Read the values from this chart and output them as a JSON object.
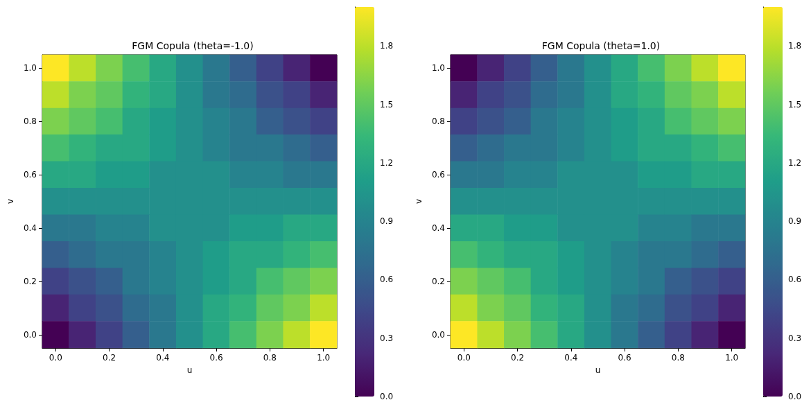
{
  "chart_data": [
    {
      "type": "heatmap",
      "title": "FGM Copula (theta=-1.0)",
      "xlabel": "u",
      "ylabel": "v",
      "categories": [
        "0.0",
        null,
        "0.2",
        null,
        "0.4",
        null,
        "0.6",
        null,
        "0.8",
        null,
        "1.0"
      ],
      "y_categories": [
        "1.0",
        null,
        "0.8",
        null,
        "0.6",
        null,
        "0.4",
        null,
        "0.2",
        null,
        "0.0"
      ],
      "cells": [
        [
          2.0,
          1.8,
          1.6,
          1.4,
          1.2,
          1.0,
          0.8,
          0.6,
          0.4,
          0.2,
          0.0
        ],
        [
          1.8,
          1.6,
          1.5,
          1.3,
          1.2,
          1.0,
          0.8,
          0.7,
          0.5,
          0.4,
          0.2
        ],
        [
          1.6,
          1.5,
          1.4,
          1.2,
          1.1,
          1.0,
          0.9,
          0.8,
          0.6,
          0.5,
          0.4
        ],
        [
          1.4,
          1.3,
          1.2,
          1.2,
          1.1,
          1.0,
          0.9,
          0.8,
          0.8,
          0.7,
          0.6
        ],
        [
          1.2,
          1.2,
          1.1,
          1.1,
          1.0,
          1.0,
          1.0,
          0.9,
          0.9,
          0.8,
          0.8
        ],
        [
          1.0,
          1.0,
          1.0,
          1.0,
          1.0,
          1.0,
          1.0,
          1.0,
          1.0,
          1.0,
          1.0
        ],
        [
          0.8,
          0.8,
          0.9,
          0.9,
          1.0,
          1.0,
          1.0,
          1.1,
          1.1,
          1.2,
          1.2
        ],
        [
          0.6,
          0.7,
          0.8,
          0.8,
          0.9,
          1.0,
          1.1,
          1.2,
          1.2,
          1.3,
          1.4
        ],
        [
          0.4,
          0.5,
          0.6,
          0.8,
          0.9,
          1.0,
          1.1,
          1.2,
          1.4,
          1.5,
          1.6
        ],
        [
          0.2,
          0.4,
          0.5,
          0.7,
          0.8,
          1.0,
          1.2,
          1.3,
          1.5,
          1.6,
          1.8
        ],
        [
          0.0,
          0.2,
          0.4,
          0.6,
          0.8,
          1.0,
          1.2,
          1.4,
          1.6,
          1.8,
          2.0
        ]
      ],
      "clim": [
        0,
        2.0
      ],
      "cticks": [
        {
          "value": 0,
          "label": "0.0"
        },
        0.3,
        0.6,
        0.9,
        1.2,
        1.5,
        1.8
      ]
    },
    {
      "type": "heatmap",
      "title": "FGM Copula (theta=1.0)",
      "xlabel": "u",
      "ylabel": "v",
      "categories": [
        "0.0",
        null,
        "0.2",
        null,
        "0.4",
        null,
        "0.6",
        null,
        "0.8",
        null,
        "1.0"
      ],
      "y_categories": [
        "1.0",
        null,
        "0.8",
        null,
        "0.6",
        null,
        "0.4",
        null,
        "0.2",
        null,
        "0.0"
      ],
      "cells": [
        [
          0.0,
          0.2,
          0.4,
          0.6,
          0.8,
          1.0,
          1.2,
          1.4,
          1.6,
          1.8,
          2.0
        ],
        [
          0.2,
          0.4,
          0.5,
          0.7,
          0.8,
          1.0,
          1.2,
          1.3,
          1.5,
          1.6,
          1.8
        ],
        [
          0.4,
          0.5,
          0.6,
          0.8,
          0.9,
          1.0,
          1.1,
          1.2,
          1.4,
          1.5,
          1.6
        ],
        [
          0.6,
          0.7,
          0.8,
          0.8,
          0.9,
          1.0,
          1.1,
          1.2,
          1.2,
          1.3,
          1.4
        ],
        [
          0.8,
          0.8,
          0.9,
          0.9,
          1.0,
          1.0,
          1.0,
          1.1,
          1.1,
          1.2,
          1.2
        ],
        [
          1.0,
          1.0,
          1.0,
          1.0,
          1.0,
          1.0,
          1.0,
          1.0,
          1.0,
          1.0,
          1.0
        ],
        [
          1.2,
          1.2,
          1.1,
          1.1,
          1.0,
          1.0,
          1.0,
          0.9,
          0.9,
          0.8,
          0.8
        ],
        [
          1.4,
          1.3,
          1.2,
          1.2,
          1.1,
          1.0,
          0.9,
          0.8,
          0.8,
          0.7,
          0.6
        ],
        [
          1.6,
          1.5,
          1.4,
          1.2,
          1.1,
          1.0,
          0.9,
          0.8,
          0.6,
          0.5,
          0.4
        ],
        [
          1.8,
          1.6,
          1.5,
          1.3,
          1.2,
          1.0,
          0.8,
          0.7,
          0.5,
          0.4,
          0.2
        ],
        [
          2.0,
          1.8,
          1.6,
          1.4,
          1.2,
          1.0,
          0.8,
          0.6,
          0.4,
          0.2,
          0.0
        ]
      ],
      "clim": [
        0,
        2.0
      ],
      "cticks": [
        {
          "value": 0,
          "label": "0.0"
        },
        0.3,
        0.6,
        0.9,
        1.2,
        1.5,
        1.8
      ]
    }
  ]
}
